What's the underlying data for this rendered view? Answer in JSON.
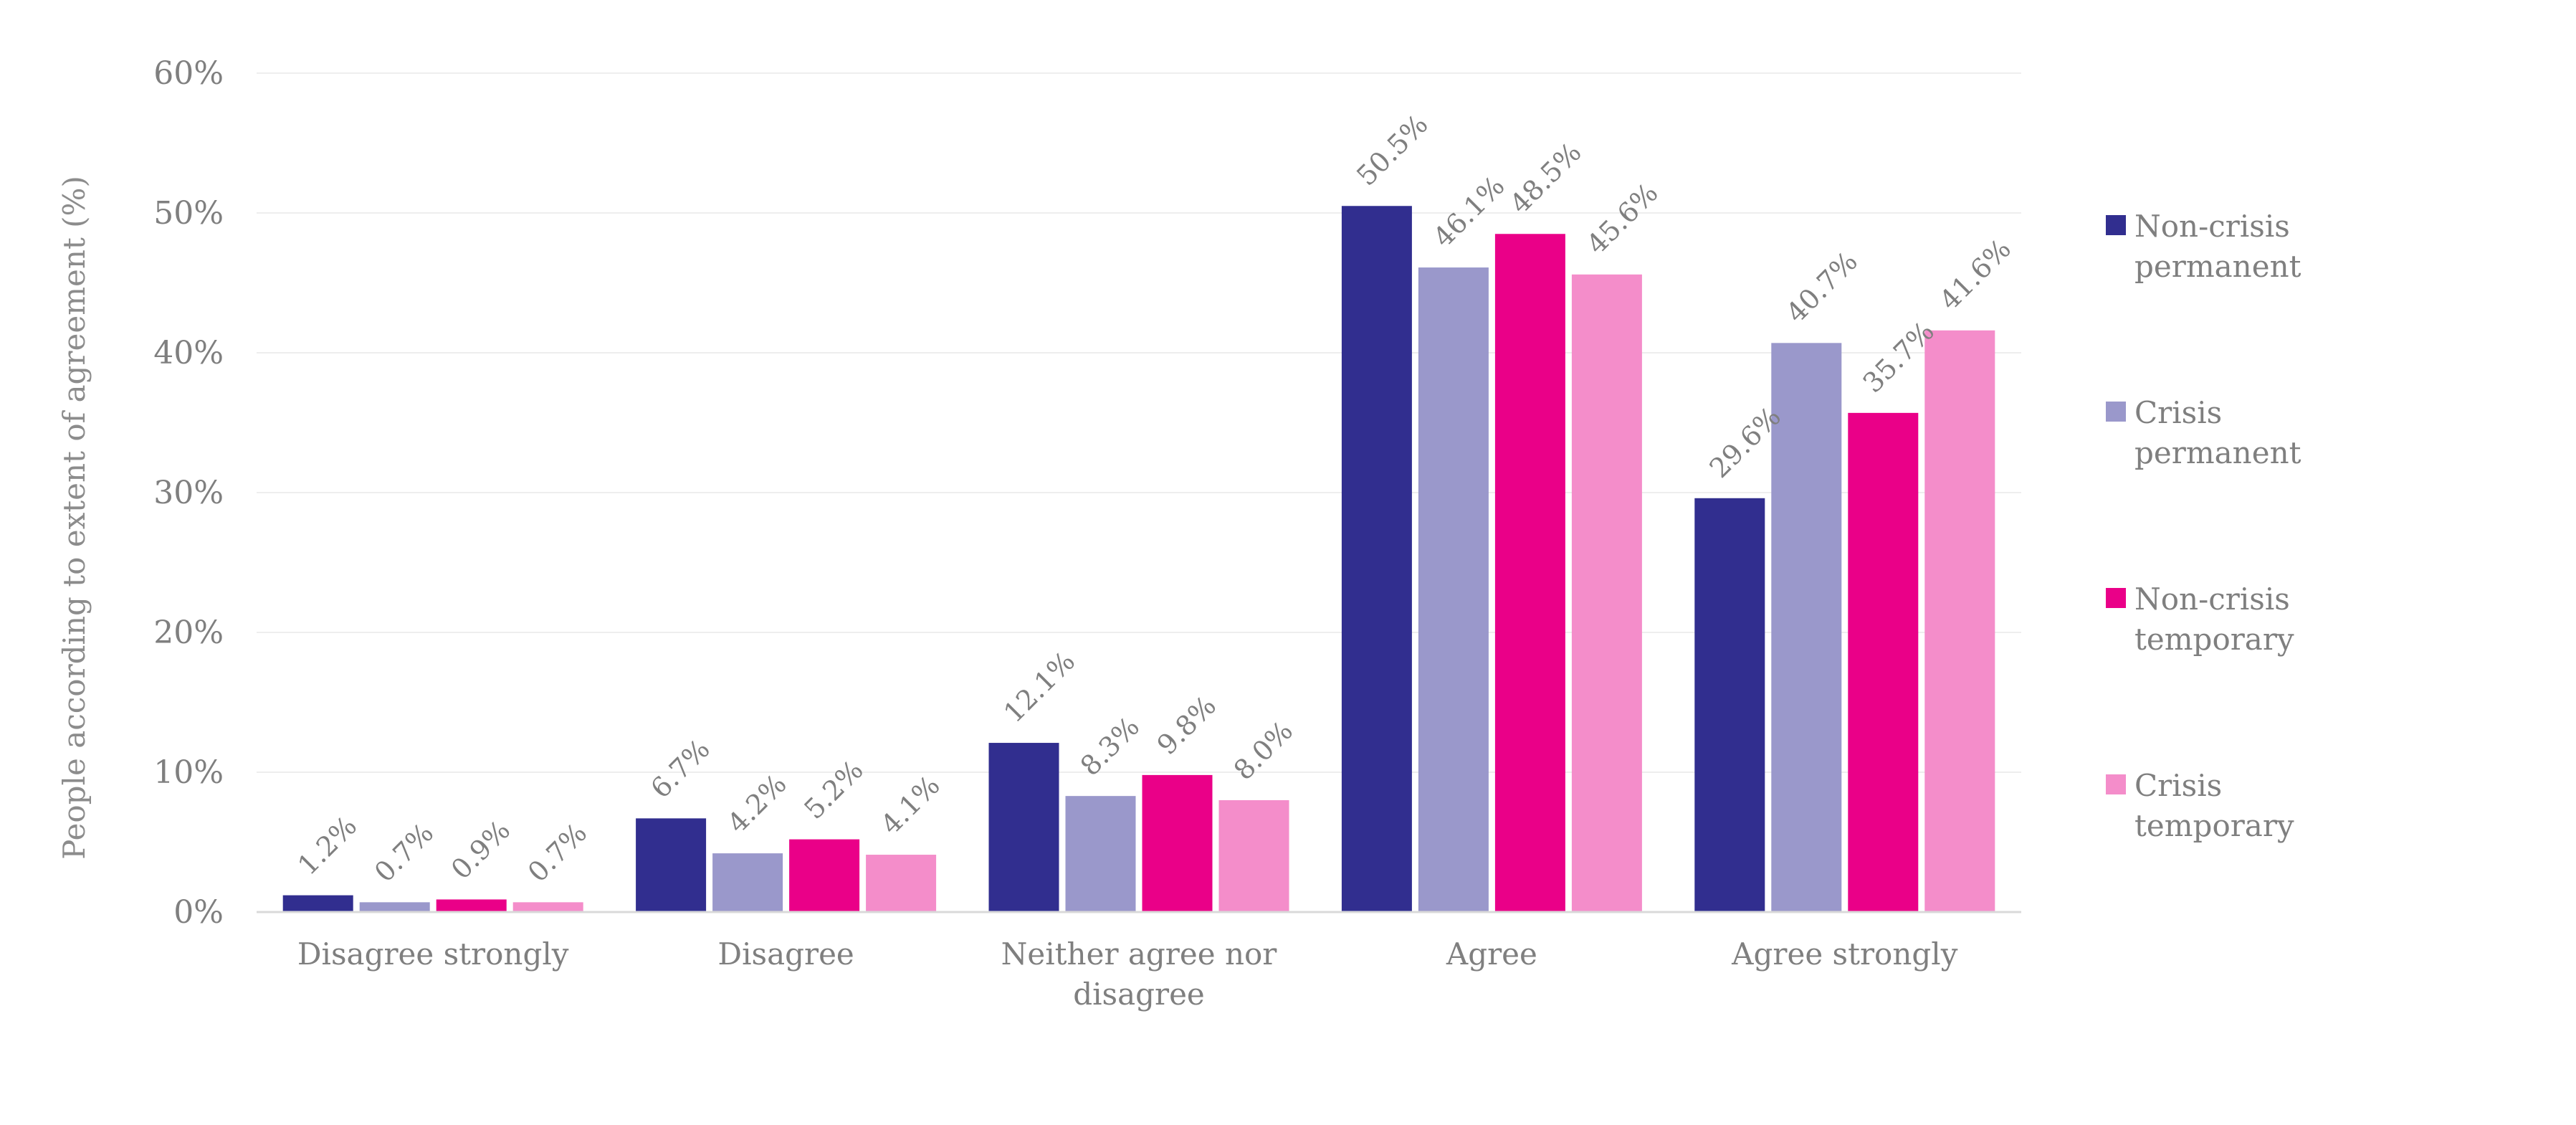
{
  "chart_data": {
    "type": "bar",
    "ylabel": "People according to extent of agreement (%)",
    "xlabel": "",
    "ylim": [
      0,
      60
    ],
    "y_ticks": [
      0,
      10,
      20,
      30,
      40,
      50,
      60
    ],
    "y_tick_format": "{v}%",
    "grid": true,
    "legend_position": "right",
    "categories": [
      [
        "Disagree strongly"
      ],
      [
        "Disagree"
      ],
      [
        "Neither agree nor",
        "disagree"
      ],
      [
        "Agree"
      ],
      [
        "Agree strongly"
      ]
    ],
    "series": [
      {
        "name": [
          "Non-crisis",
          "permanent"
        ],
        "color": "#312e8f",
        "values": [
          1.2,
          6.7,
          12.1,
          50.5,
          29.6
        ],
        "labels": [
          "1.2%",
          "6.7%",
          "12.1%",
          "50.5%",
          "29.6%"
        ]
      },
      {
        "name": [
          "Crisis",
          "permanent"
        ],
        "color": "#9a98cb",
        "values": [
          0.7,
          4.2,
          8.3,
          46.1,
          40.7
        ],
        "labels": [
          "0.7%",
          "4.2%",
          "8.3%",
          "46.1%",
          "40.7%"
        ]
      },
      {
        "name": [
          "Non-crisis",
          "temporary"
        ],
        "color": "#ea0088",
        "values": [
          0.9,
          5.2,
          9.8,
          48.5,
          35.7
        ],
        "labels": [
          "0.9%",
          "5.2%",
          "9.8%",
          "48.5%",
          "35.7%"
        ]
      },
      {
        "name": [
          "Crisis",
          "temporary"
        ],
        "color": "#f48dca",
        "values": [
          0.7,
          4.1,
          8.0,
          45.6,
          41.6
        ],
        "labels": [
          "0.7%",
          "4.1%",
          "8.0%",
          "45.6%",
          "41.6%"
        ]
      }
    ]
  }
}
